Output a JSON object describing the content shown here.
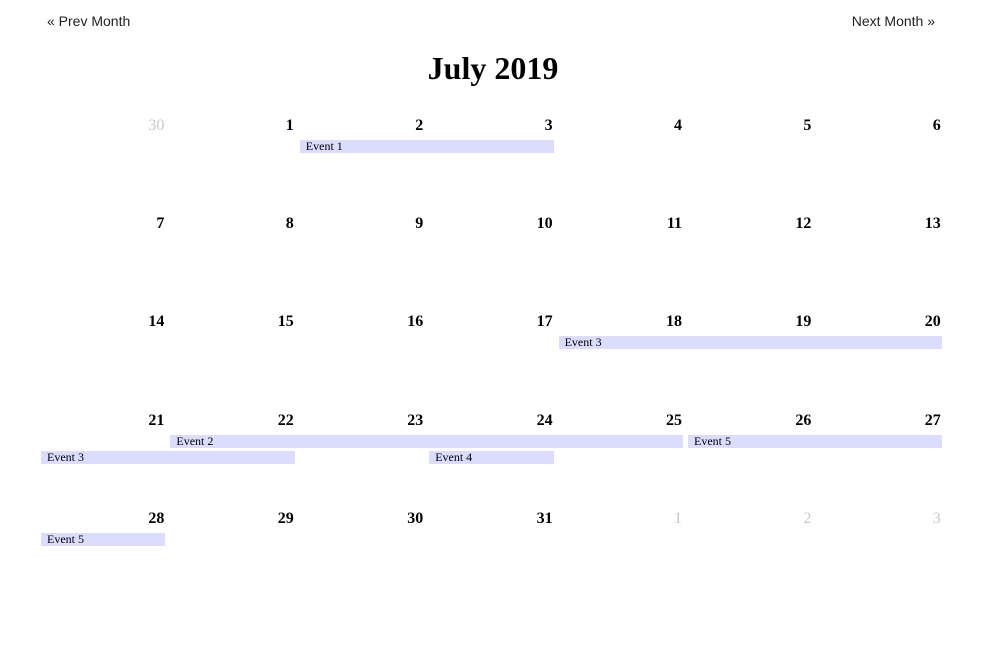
{
  "nav": {
    "prev_label": "« Prev Month",
    "next_label": "Next Month »"
  },
  "calendar": {
    "title": "July 2019",
    "weeks": [
      [
        {
          "day": "30",
          "other": true
        },
        {
          "day": "1"
        },
        {
          "day": "2"
        },
        {
          "day": "3"
        },
        {
          "day": "4"
        },
        {
          "day": "5"
        },
        {
          "day": "6"
        }
      ],
      [
        {
          "day": "7"
        },
        {
          "day": "8"
        },
        {
          "day": "9"
        },
        {
          "day": "10"
        },
        {
          "day": "11"
        },
        {
          "day": "12"
        },
        {
          "day": "13"
        }
      ],
      [
        {
          "day": "14"
        },
        {
          "day": "15"
        },
        {
          "day": "16"
        },
        {
          "day": "17"
        },
        {
          "day": "18"
        },
        {
          "day": "19"
        },
        {
          "day": "20"
        }
      ],
      [
        {
          "day": "21"
        },
        {
          "day": "22"
        },
        {
          "day": "23"
        },
        {
          "day": "24"
        },
        {
          "day": "25"
        },
        {
          "day": "26"
        },
        {
          "day": "27"
        }
      ],
      [
        {
          "day": "28"
        },
        {
          "day": "29"
        },
        {
          "day": "30"
        },
        {
          "day": "31"
        },
        {
          "day": "1",
          "other": true
        },
        {
          "day": "2",
          "other": true
        },
        {
          "day": "3",
          "other": true
        }
      ]
    ],
    "events": [
      {
        "label": "Event 1",
        "week": 0,
        "start_col": 2,
        "end_col": 3,
        "lane": 0
      },
      {
        "label": "Event 3",
        "week": 2,
        "start_col": 4,
        "end_col": 6,
        "lane": 0
      },
      {
        "label": "Event 2",
        "week": 3,
        "start_col": 1,
        "end_col": 4,
        "lane": 0
      },
      {
        "label": "Event 5",
        "week": 3,
        "start_col": 5,
        "end_col": 6,
        "lane": 0
      },
      {
        "label": "Event 3",
        "week": 3,
        "start_col": 0,
        "end_col": 1,
        "lane": 1
      },
      {
        "label": "Event 4",
        "week": 3,
        "start_col": 3,
        "end_col": 3,
        "lane": 1
      },
      {
        "label": "Event 5",
        "week": 4,
        "start_col": 0,
        "end_col": 0,
        "lane": 0
      }
    ]
  }
}
